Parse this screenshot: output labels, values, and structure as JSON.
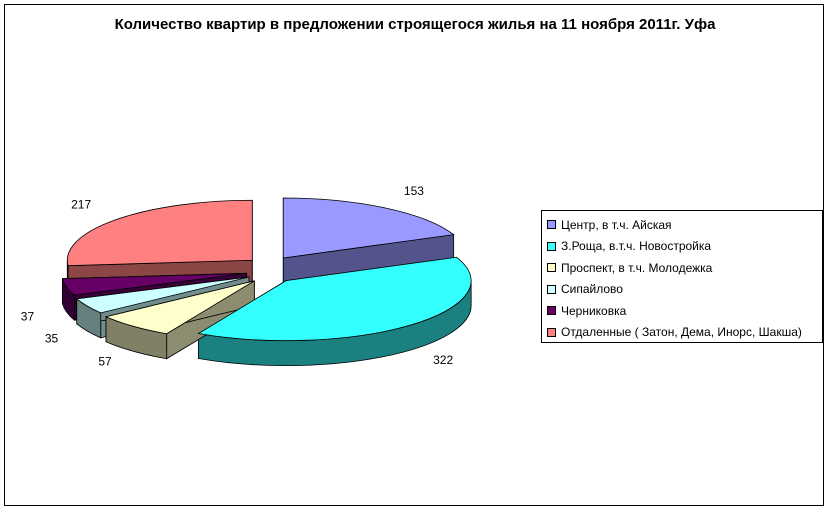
{
  "chart_data": {
    "type": "pie",
    "title": "Количество квартир в предложении строящегося жилья на 11 ноября 2011г. Уфа",
    "categories": [
      "Центр, в т.ч. Айская",
      "З.Роща, в.т.ч. Новостройка",
      "Проспект, в т.ч. Молодежка",
      "Сипайлово",
      "Черниковка",
      "Отдаленные ( Затон, Дема, Инорс, Шакша)"
    ],
    "values": [
      153,
      322,
      57,
      35,
      37,
      217
    ],
    "colors": [
      "#9999FF",
      "#33FFFF",
      "#FFFFCC",
      "#CCFFFF",
      "#660066",
      "#FF8080"
    ],
    "variant": "3d-exploded",
    "legend": "right",
    "grid": false
  }
}
